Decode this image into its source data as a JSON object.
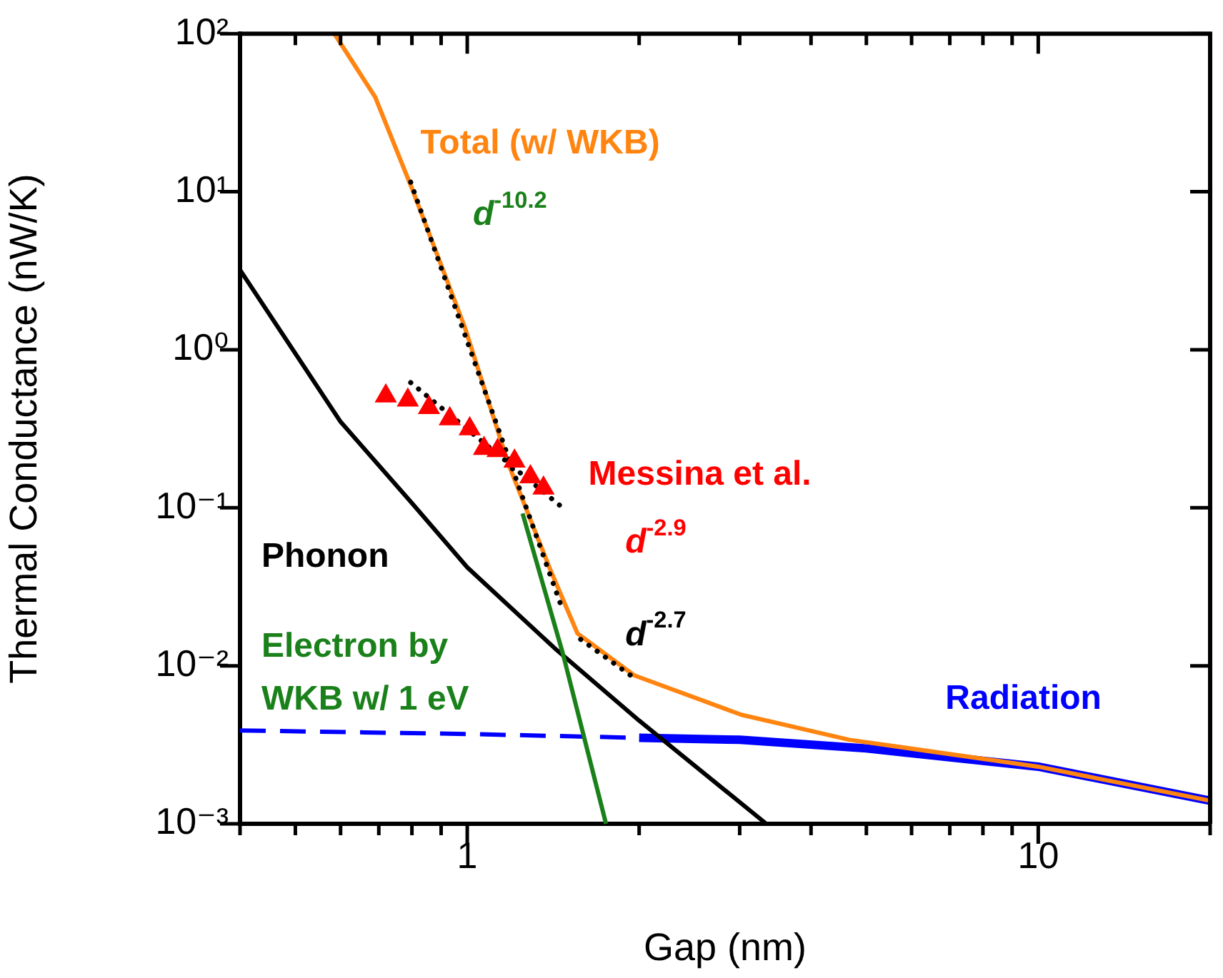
{
  "chart_data": {
    "type": "line",
    "xlabel": "Gap (nm)",
    "ylabel": "Thermal Conductance (nW/K)",
    "log": "xy",
    "grid": false,
    "legend": false,
    "marker": "none",
    "xlim": [
      0.4,
      20
    ],
    "ylim": [
      0.001,
      100
    ],
    "xticks": [
      {
        "value": 0.4,
        "label": null
      },
      {
        "value": 0.5,
        "label": null
      },
      {
        "value": 0.6,
        "label": null
      },
      {
        "value": 0.7,
        "label": null
      },
      {
        "value": 0.8,
        "label": null
      },
      {
        "value": 0.9,
        "label": null
      },
      1,
      {
        "value": 2,
        "label": null
      },
      {
        "value": 3,
        "label": null
      },
      {
        "value": 4,
        "label": null
      },
      {
        "value": 5,
        "label": null
      },
      {
        "value": 6,
        "label": null
      },
      {
        "value": 7,
        "label": null
      },
      {
        "value": 8,
        "label": null
      },
      {
        "value": 9,
        "label": null
      },
      10,
      {
        "value": 20,
        "label": null
      }
    ],
    "yticks": [
      {
        "value": 0.001,
        "label": "10⁻³"
      },
      {
        "value": 0.01,
        "label": "10⁻²"
      },
      {
        "value": 0.1,
        "label": "10⁻¹"
      },
      {
        "value": 1,
        "label": "10⁰"
      },
      {
        "value": 10,
        "label": "10¹"
      },
      {
        "value": 100,
        "label": "10²"
      }
    ],
    "series": [
      {
        "color": "#0000ff",
        "line_style": "dashed",
        "x": [
          0.4,
          1,
          2
        ],
        "values": [
          0.0039,
          0.0037,
          0.0035
        ]
      },
      {
        "name": "Radiation",
        "color": "#0000ff",
        "line_style": "solid",
        "x": [
          2,
          3,
          5,
          10,
          20
        ],
        "values": [
          0.0035,
          0.0034,
          0.003,
          0.0023,
          0.0014
        ]
      },
      {
        "name": "Phonon",
        "color": "#000000",
        "line_style": "solid",
        "x": [
          0.4,
          0.6,
          0.8,
          1,
          1.42,
          2,
          3.34
        ],
        "values": [
          3.2,
          0.35,
          0.107,
          0.042,
          0.013,
          0.0045,
          0.001
        ]
      },
      {
        "name": "Electron by WKB w/ 1 eV",
        "color": "#1a801a",
        "line_style": "solid",
        "x": [
          1.25,
          1.47,
          1.75
        ],
        "values": [
          0.092,
          0.012,
          0.001
        ]
      },
      {
        "name": "Total (w/ WKB)",
        "color": "#ff8410",
        "line_style": "solid",
        "x": [
          0.585,
          0.69,
          0.8,
          0.99,
          1.18,
          1.4,
          1.56,
          1.96,
          3.02,
          4.67,
          10,
          20
        ],
        "values": [
          100,
          39.7,
          10.5,
          1.39,
          0.19,
          0.04,
          0.016,
          0.0087,
          0.0049,
          0.0034,
          0.0023,
          0.0014
        ]
      },
      {
        "color": "#000000",
        "line_style": "dotted",
        "x": [
          0.796,
          1.46
        ],
        "values": [
          11.5,
          0.024
        ]
      },
      {
        "color": "#000000",
        "line_style": "dotted",
        "x": [
          0.796,
          1.45
        ],
        "values": [
          0.62,
          0.104
        ]
      },
      {
        "color": "#000000",
        "line_style": "dotted",
        "x": [
          1.58,
          1.95
        ],
        "values": [
          0.0147,
          0.0085
        ]
      },
      {
        "type": "scatter",
        "name": "Messina et al.",
        "color": "#ff0000",
        "marker": "triangle",
        "x": [
          0.72,
          0.787,
          0.857,
          0.932,
          1.01,
          1.07,
          1.13,
          1.21,
          1.29,
          1.36
        ],
        "values": [
          0.51,
          0.48,
          0.43,
          0.365,
          0.316,
          0.237,
          0.23,
          0.197,
          0.157,
          0.133
        ]
      }
    ],
    "annotations": [
      "d$^{-10.2}$",
      "d$^{-2.9}$",
      "d$^{-2.7}$"
    ]
  }
}
